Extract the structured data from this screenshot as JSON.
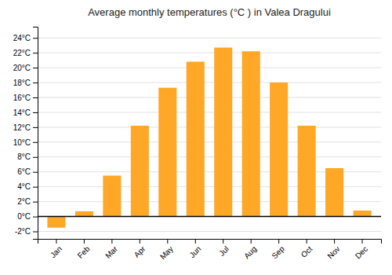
{
  "chart_data": {
    "type": "bar",
    "title": "Average monthly temperatures (°C ) in Valea Dragului",
    "categories": [
      "Jan",
      "Feb",
      "Mar",
      "Apr",
      "May",
      "Jun",
      "Jul",
      "Aug",
      "Sep",
      "Oct",
      "Nov",
      "Dec"
    ],
    "values": [
      -1.5,
      0.7,
      5.5,
      12.2,
      17.3,
      20.8,
      22.7,
      22.2,
      18.0,
      12.2,
      6.5,
      0.8
    ],
    "color": "#FFA726",
    "ylim": [
      -3,
      25.5
    ],
    "yticks": [
      {
        "value": -2,
        "label": "-2°C"
      },
      {
        "value": 0,
        "label": "0°C"
      },
      {
        "value": 2,
        "label": "2°C"
      },
      {
        "value": 4,
        "label": "4°C"
      },
      {
        "value": 6,
        "label": "6°C"
      },
      {
        "value": 8,
        "label": "8°C"
      },
      {
        "value": 10,
        "label": "10°C"
      },
      {
        "value": 12,
        "label": "12°C"
      },
      {
        "value": 14,
        "label": "14°C"
      },
      {
        "value": 16,
        "label": "16°C"
      },
      {
        "value": 18,
        "label": "18°C"
      },
      {
        "value": 20,
        "label": "20°C"
      },
      {
        "value": 22,
        "label": "22°C"
      },
      {
        "value": 24,
        "label": "24°C"
      }
    ],
    "grid": true
  }
}
